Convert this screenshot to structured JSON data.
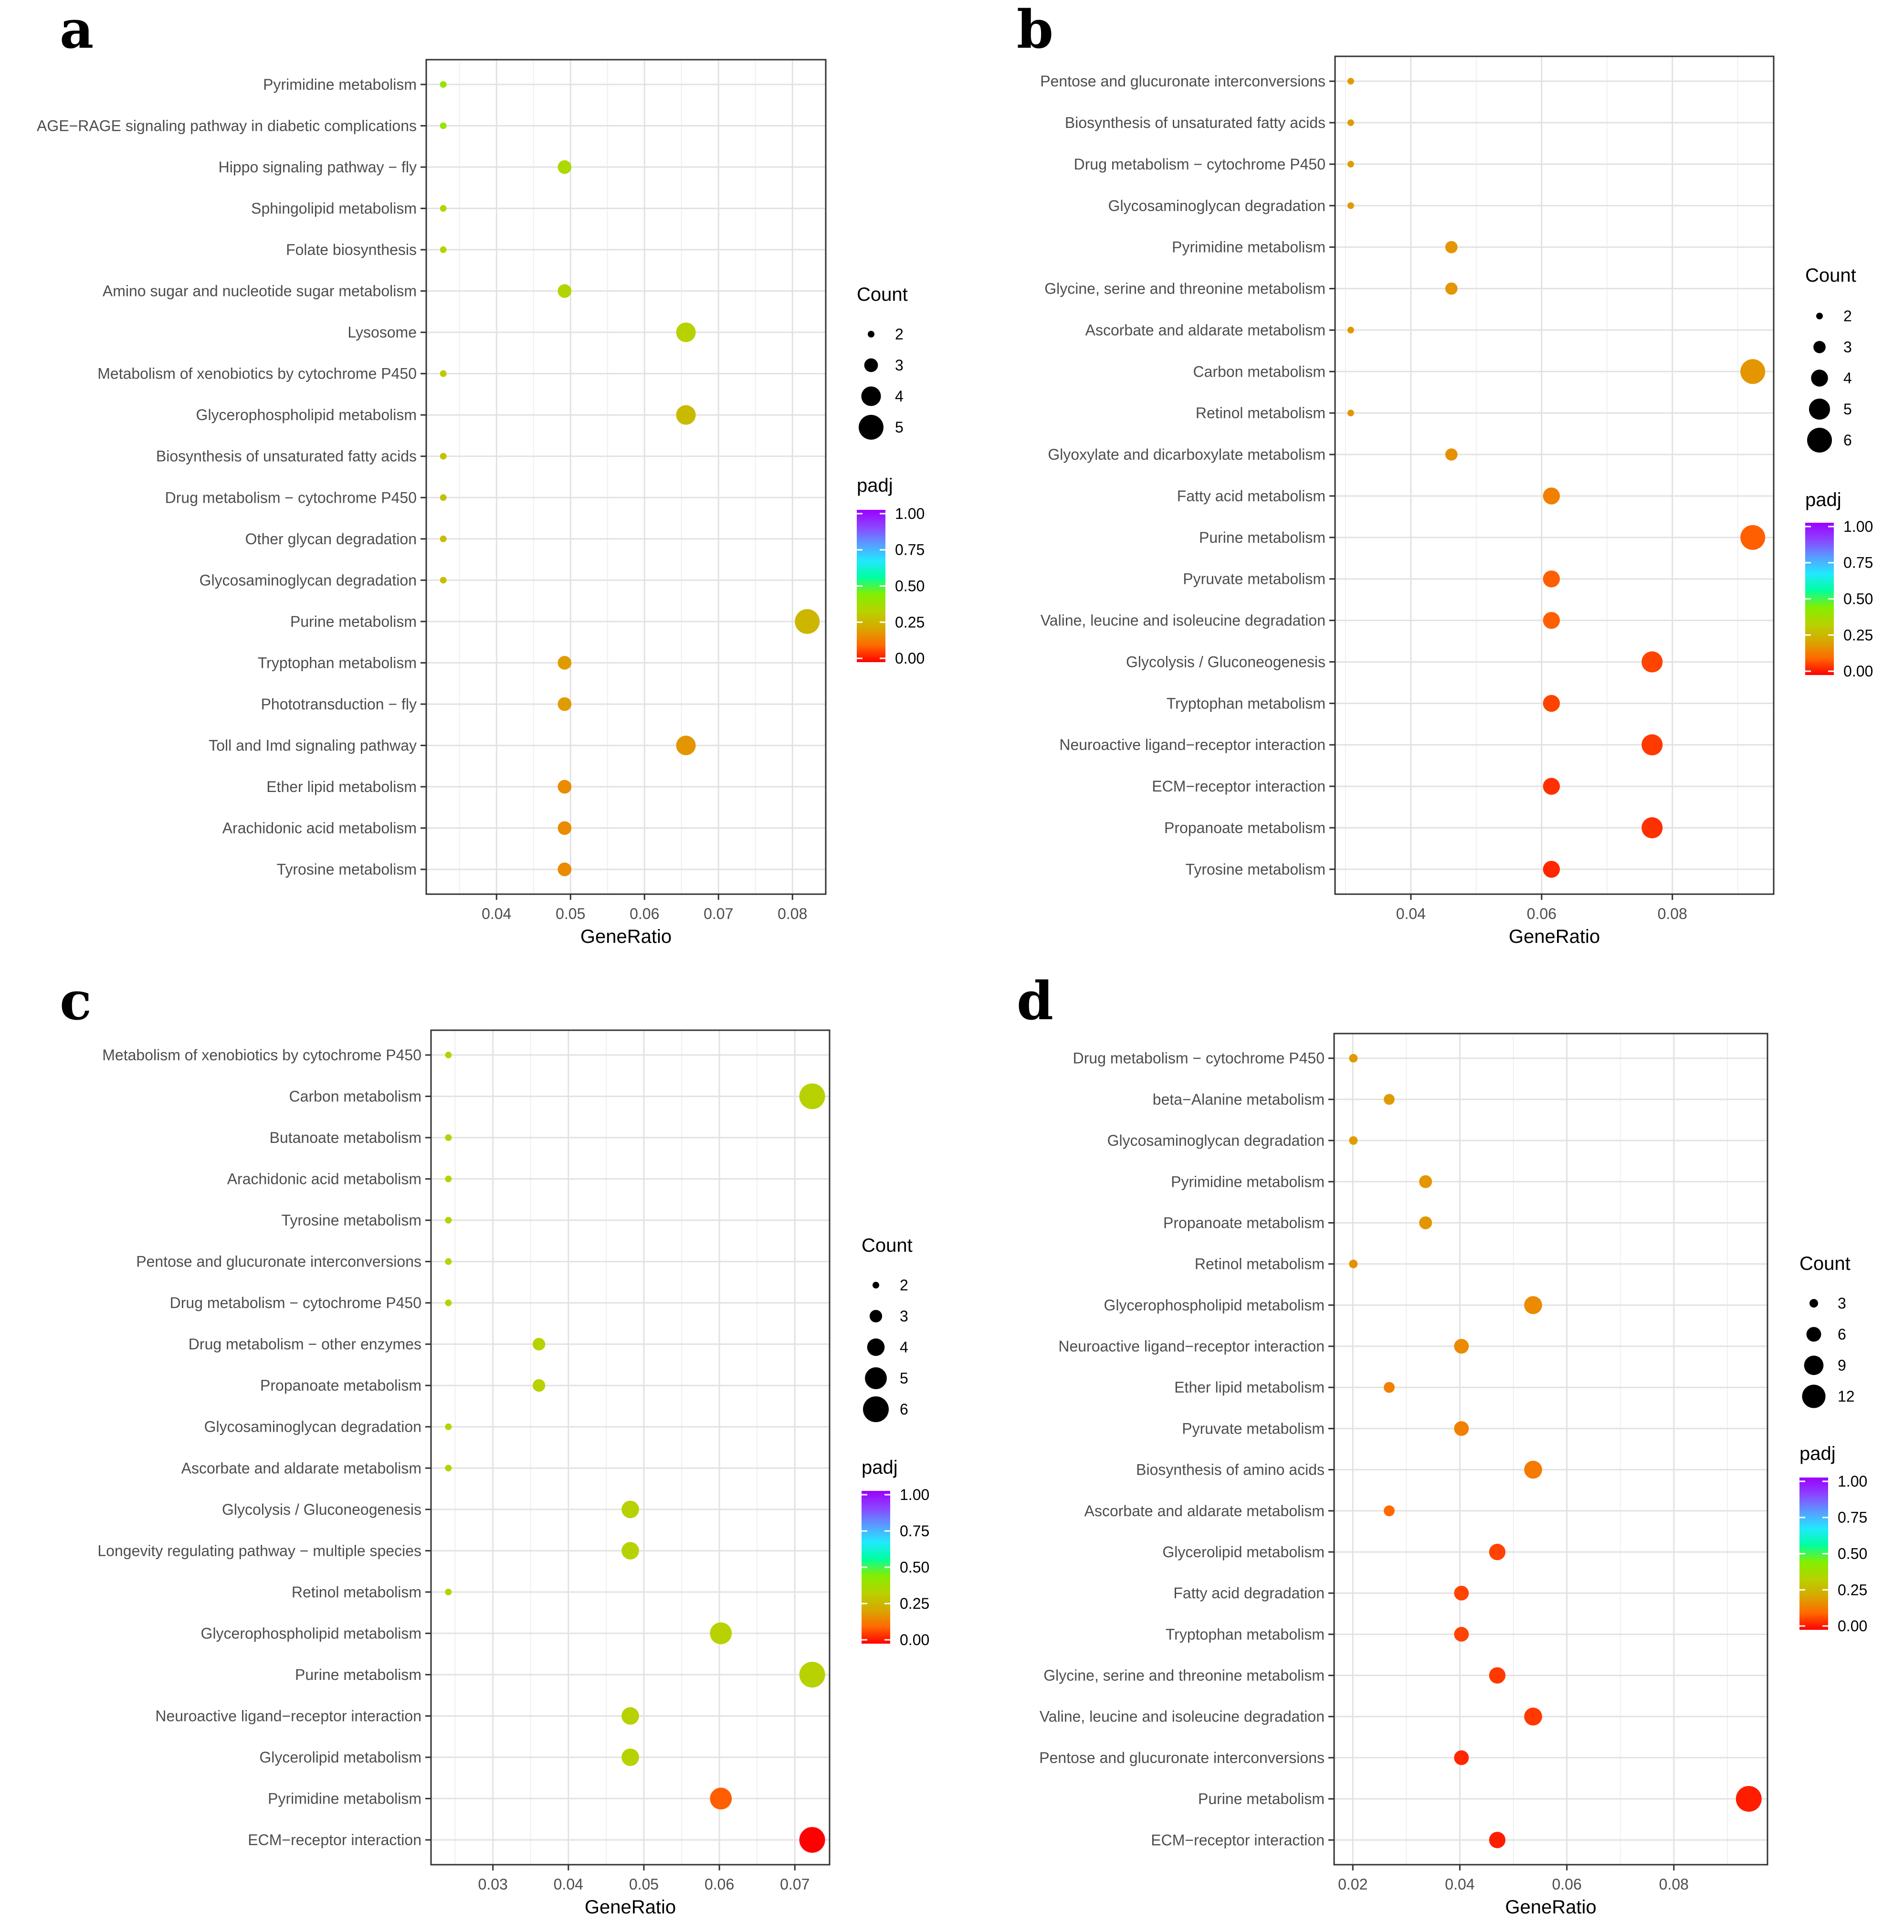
{
  "figure": {
    "panels": [
      "a",
      "b",
      "c",
      "d"
    ]
  },
  "colors": {
    "scale_stops": [
      "#ff0000",
      "#ff6a00",
      "#d7a800",
      "#b7d200",
      "#84ee00",
      "#00ffa0",
      "#22e8ff",
      "#5a9aff",
      "#8c44ff",
      "#9b00ff"
    ]
  },
  "chart_data": [
    {
      "panel": "a",
      "type": "scatter",
      "xlabel": "GeneRatio",
      "xlim": [
        0.0305,
        0.0845
      ],
      "xticks": [
        0.04,
        0.05,
        0.06,
        0.07,
        0.08
      ],
      "xtick_labels": [
        "0.04",
        "0.05",
        "0.06",
        "0.07",
        "0.08"
      ],
      "count_legend": {
        "title": "Count",
        "values": [
          2,
          3,
          4,
          5
        ],
        "labels": [
          "2",
          "3",
          "4",
          "5"
        ]
      },
      "padj_legend": {
        "title": "padj",
        "ticks": [
          "1.00",
          "0.75",
          "0.50",
          "0.25",
          "0.00"
        ]
      },
      "rows": [
        {
          "term": "Pyrimidine metabolism",
          "ratio": 0.0328,
          "count": 2,
          "padj": 0.4
        },
        {
          "term": "AGE−RAGE signaling pathway in diabetic complications",
          "ratio": 0.0328,
          "count": 2,
          "padj": 0.4
        },
        {
          "term": "Hippo signaling pathway − fly",
          "ratio": 0.0492,
          "count": 3,
          "padj": 0.36
        },
        {
          "term": "Sphingolipid metabolism",
          "ratio": 0.0328,
          "count": 2,
          "padj": 0.35
        },
        {
          "term": "Folate biosynthesis",
          "ratio": 0.0328,
          "count": 2,
          "padj": 0.35
        },
        {
          "term": "Amino sugar and nucleotide sugar metabolism",
          "ratio": 0.0492,
          "count": 3,
          "padj": 0.34
        },
        {
          "term": "Lysosome",
          "ratio": 0.0656,
          "count": 4,
          "padj": 0.33
        },
        {
          "term": "Metabolism of xenobiotics by cytochrome P450",
          "ratio": 0.0328,
          "count": 2,
          "padj": 0.31
        },
        {
          "term": "Glycerophospholipid metabolism",
          "ratio": 0.0656,
          "count": 4,
          "padj": 0.27
        },
        {
          "term": "Biosynthesis of unsaturated fatty acids",
          "ratio": 0.0328,
          "count": 2,
          "padj": 0.29
        },
        {
          "term": "Drug metabolism − cytochrome P450",
          "ratio": 0.0328,
          "count": 2,
          "padj": 0.29
        },
        {
          "term": "Other glycan degradation",
          "ratio": 0.0328,
          "count": 2,
          "padj": 0.28
        },
        {
          "term": "Glycosaminoglycan degradation",
          "ratio": 0.0328,
          "count": 2,
          "padj": 0.28
        },
        {
          "term": "Purine metabolism",
          "ratio": 0.082,
          "count": 5,
          "padj": 0.26
        },
        {
          "term": "Tryptophan metabolism",
          "ratio": 0.0492,
          "count": 3,
          "padj": 0.2
        },
        {
          "term": "Phototransduction − fly",
          "ratio": 0.0492,
          "count": 3,
          "padj": 0.2
        },
        {
          "term": "Toll and Imd signaling pathway",
          "ratio": 0.0656,
          "count": 4,
          "padj": 0.19
        },
        {
          "term": "Ether lipid metabolism",
          "ratio": 0.0492,
          "count": 3,
          "padj": 0.17
        },
        {
          "term": "Arachidonic acid metabolism",
          "ratio": 0.0492,
          "count": 3,
          "padj": 0.17
        },
        {
          "term": "Tyrosine metabolism",
          "ratio": 0.0492,
          "count": 3,
          "padj": 0.17
        }
      ]
    },
    {
      "panel": "b",
      "type": "scatter",
      "xlabel": "GeneRatio",
      "xlim": [
        0.0284,
        0.0955
      ],
      "xticks": [
        0.04,
        0.06,
        0.08
      ],
      "xtick_labels": [
        "0.04",
        "0.06",
        "0.08"
      ],
      "count_legend": {
        "title": "Count",
        "values": [
          2,
          3,
          4,
          5,
          6
        ],
        "labels": [
          "2",
          "3",
          "4",
          "5",
          "6"
        ]
      },
      "padj_legend": {
        "title": "padj",
        "ticks": [
          "1.00",
          "0.75",
          "0.50",
          "0.25",
          "0.00"
        ]
      },
      "rows": [
        {
          "term": "Pentose and glucuronate interconversions",
          "ratio": 0.0308,
          "count": 2,
          "padj": 0.2
        },
        {
          "term": "Biosynthesis of unsaturated fatty acids",
          "ratio": 0.0308,
          "count": 2,
          "padj": 0.2
        },
        {
          "term": "Drug metabolism − cytochrome P450",
          "ratio": 0.0308,
          "count": 2,
          "padj": 0.2
        },
        {
          "term": "Glycosaminoglycan degradation",
          "ratio": 0.0308,
          "count": 2,
          "padj": 0.2
        },
        {
          "term": "Pyrimidine metabolism",
          "ratio": 0.0462,
          "count": 3,
          "padj": 0.19
        },
        {
          "term": "Glycine, serine and threonine metabolism",
          "ratio": 0.0462,
          "count": 3,
          "padj": 0.19
        },
        {
          "term": "Ascorbate and aldarate metabolism",
          "ratio": 0.0308,
          "count": 2,
          "padj": 0.19
        },
        {
          "term": "Carbon metabolism",
          "ratio": 0.0923,
          "count": 6,
          "padj": 0.19
        },
        {
          "term": "Retinol metabolism",
          "ratio": 0.0308,
          "count": 2,
          "padj": 0.19
        },
        {
          "term": "Glyoxylate and dicarboxylate metabolism",
          "ratio": 0.0462,
          "count": 3,
          "padj": 0.18
        },
        {
          "term": "Fatty acid metabolism",
          "ratio": 0.0615,
          "count": 4,
          "padj": 0.15
        },
        {
          "term": "Purine metabolism",
          "ratio": 0.0923,
          "count": 6,
          "padj": 0.1
        },
        {
          "term": "Pyruvate metabolism",
          "ratio": 0.0615,
          "count": 4,
          "padj": 0.1
        },
        {
          "term": "Valine, leucine and isoleucine degradation",
          "ratio": 0.0615,
          "count": 4,
          "padj": 0.1
        },
        {
          "term": "Glycolysis / Gluconeogenesis",
          "ratio": 0.0769,
          "count": 5,
          "padj": 0.07
        },
        {
          "term": "Tryptophan metabolism",
          "ratio": 0.0615,
          "count": 4,
          "padj": 0.07
        },
        {
          "term": "Neuroactive ligand−receptor interaction",
          "ratio": 0.0769,
          "count": 5,
          "padj": 0.06
        },
        {
          "term": "ECM−receptor interaction",
          "ratio": 0.0615,
          "count": 4,
          "padj": 0.05
        },
        {
          "term": "Propanoate metabolism",
          "ratio": 0.0769,
          "count": 5,
          "padj": 0.05
        },
        {
          "term": "Tyrosine metabolism",
          "ratio": 0.0615,
          "count": 4,
          "padj": 0.04
        }
      ]
    },
    {
      "panel": "c",
      "type": "scatter",
      "xlabel": "GeneRatio",
      "xlim": [
        0.0218,
        0.0746
      ],
      "xticks": [
        0.03,
        0.04,
        0.05,
        0.06,
        0.07
      ],
      "xtick_labels": [
        "0.03",
        "0.04",
        "0.05",
        "0.06",
        "0.07"
      ],
      "count_legend": {
        "title": "Count",
        "values": [
          2,
          3,
          4,
          5,
          6
        ],
        "labels": [
          "2",
          "3",
          "4",
          "5",
          "6"
        ]
      },
      "padj_legend": {
        "title": "padj",
        "ticks": [
          "1.00",
          "0.75",
          "0.50",
          "0.25",
          "0.00"
        ]
      },
      "rows": [
        {
          "term": "Metabolism of xenobiotics by cytochrome P450",
          "ratio": 0.0241,
          "count": 2,
          "padj": 0.33
        },
        {
          "term": "Carbon metabolism",
          "ratio": 0.0723,
          "count": 6,
          "padj": 0.33
        },
        {
          "term": "Butanoate metabolism",
          "ratio": 0.0241,
          "count": 2,
          "padj": 0.33
        },
        {
          "term": "Arachidonic acid metabolism",
          "ratio": 0.0241,
          "count": 2,
          "padj": 0.33
        },
        {
          "term": "Tyrosine metabolism",
          "ratio": 0.0241,
          "count": 2,
          "padj": 0.33
        },
        {
          "term": "Pentose and glucuronate interconversions",
          "ratio": 0.0241,
          "count": 2,
          "padj": 0.33
        },
        {
          "term": "Drug metabolism − cytochrome P450",
          "ratio": 0.0241,
          "count": 2,
          "padj": 0.33
        },
        {
          "term": "Drug metabolism − other enzymes",
          "ratio": 0.0361,
          "count": 3,
          "padj": 0.33
        },
        {
          "term": "Propanoate metabolism",
          "ratio": 0.0361,
          "count": 3,
          "padj": 0.33
        },
        {
          "term": "Glycosaminoglycan degradation",
          "ratio": 0.0241,
          "count": 2,
          "padj": 0.33
        },
        {
          "term": "Ascorbate and aldarate metabolism",
          "ratio": 0.0241,
          "count": 2,
          "padj": 0.33
        },
        {
          "term": "Glycolysis / Gluconeogenesis",
          "ratio": 0.0482,
          "count": 4,
          "padj": 0.33
        },
        {
          "term": "Longevity regulating pathway − multiple species",
          "ratio": 0.0482,
          "count": 4,
          "padj": 0.33
        },
        {
          "term": "Retinol metabolism",
          "ratio": 0.0241,
          "count": 2,
          "padj": 0.33
        },
        {
          "term": "Glycerophospholipid metabolism",
          "ratio": 0.0602,
          "count": 5,
          "padj": 0.33
        },
        {
          "term": "Purine metabolism",
          "ratio": 0.0723,
          "count": 6,
          "padj": 0.33
        },
        {
          "term": "Neuroactive ligand−receptor interaction",
          "ratio": 0.0482,
          "count": 4,
          "padj": 0.33
        },
        {
          "term": "Glycerolipid metabolism",
          "ratio": 0.0482,
          "count": 4,
          "padj": 0.33
        },
        {
          "term": "Pyrimidine metabolism",
          "ratio": 0.0602,
          "count": 5,
          "padj": 0.1
        },
        {
          "term": "ECM−receptor interaction",
          "ratio": 0.0723,
          "count": 6,
          "padj": 0.0
        }
      ]
    },
    {
      "panel": "d",
      "type": "scatter",
      "xlabel": "GeneRatio",
      "xlim": [
        0.0165,
        0.0975
      ],
      "xticks": [
        0.02,
        0.04,
        0.06,
        0.08
      ],
      "xtick_labels": [
        "0.02",
        "0.04",
        "0.06",
        "0.08"
      ],
      "count_legend": {
        "title": "Count",
        "values": [
          3,
          6,
          9,
          12
        ],
        "labels": [
          "3",
          "6",
          "9",
          "12"
        ]
      },
      "padj_legend": {
        "title": "padj",
        "ticks": [
          "1.00",
          "0.75",
          "0.50",
          "0.25",
          "0.00"
        ]
      },
      "rows": [
        {
          "term": "Drug metabolism − cytochrome P450",
          "ratio": 0.0201,
          "count": 3,
          "padj": 0.2
        },
        {
          "term": "beta−Alanine metabolism",
          "ratio": 0.0268,
          "count": 4,
          "padj": 0.2
        },
        {
          "term": "Glycosaminoglycan degradation",
          "ratio": 0.0201,
          "count": 3,
          "padj": 0.2
        },
        {
          "term": "Pyrimidine metabolism",
          "ratio": 0.0336,
          "count": 5,
          "padj": 0.19
        },
        {
          "term": "Propanoate metabolism",
          "ratio": 0.0336,
          "count": 5,
          "padj": 0.19
        },
        {
          "term": "Retinol metabolism",
          "ratio": 0.0201,
          "count": 3,
          "padj": 0.18
        },
        {
          "term": "Glycerophospholipid metabolism",
          "ratio": 0.0537,
          "count": 8,
          "padj": 0.17
        },
        {
          "term": "Neuroactive ligand−receptor interaction",
          "ratio": 0.0403,
          "count": 6,
          "padj": 0.17
        },
        {
          "term": "Ether lipid metabolism",
          "ratio": 0.0268,
          "count": 4,
          "padj": 0.15
        },
        {
          "term": "Pyruvate metabolism",
          "ratio": 0.0403,
          "count": 6,
          "padj": 0.15
        },
        {
          "term": "Biosynthesis of amino acids",
          "ratio": 0.0537,
          "count": 8,
          "padj": 0.14
        },
        {
          "term": "Ascorbate and aldarate metabolism",
          "ratio": 0.0268,
          "count": 4,
          "padj": 0.11
        },
        {
          "term": "Glycerolipid metabolism",
          "ratio": 0.047,
          "count": 7,
          "padj": 0.07
        },
        {
          "term": "Fatty acid degradation",
          "ratio": 0.0403,
          "count": 6,
          "padj": 0.07
        },
        {
          "term": "Tryptophan metabolism",
          "ratio": 0.0403,
          "count": 6,
          "padj": 0.07
        },
        {
          "term": "Glycine, serine and threonine metabolism",
          "ratio": 0.047,
          "count": 7,
          "padj": 0.06
        },
        {
          "term": "Valine, leucine and isoleucine degradation",
          "ratio": 0.0537,
          "count": 8,
          "padj": 0.06
        },
        {
          "term": "Pentose and glucuronate interconversions",
          "ratio": 0.0403,
          "count": 6,
          "padj": 0.04
        },
        {
          "term": "Purine metabolism",
          "ratio": 0.094,
          "count": 14,
          "padj": 0.03
        },
        {
          "term": "ECM−receptor interaction",
          "ratio": 0.047,
          "count": 7,
          "padj": 0.03
        }
      ]
    }
  ]
}
